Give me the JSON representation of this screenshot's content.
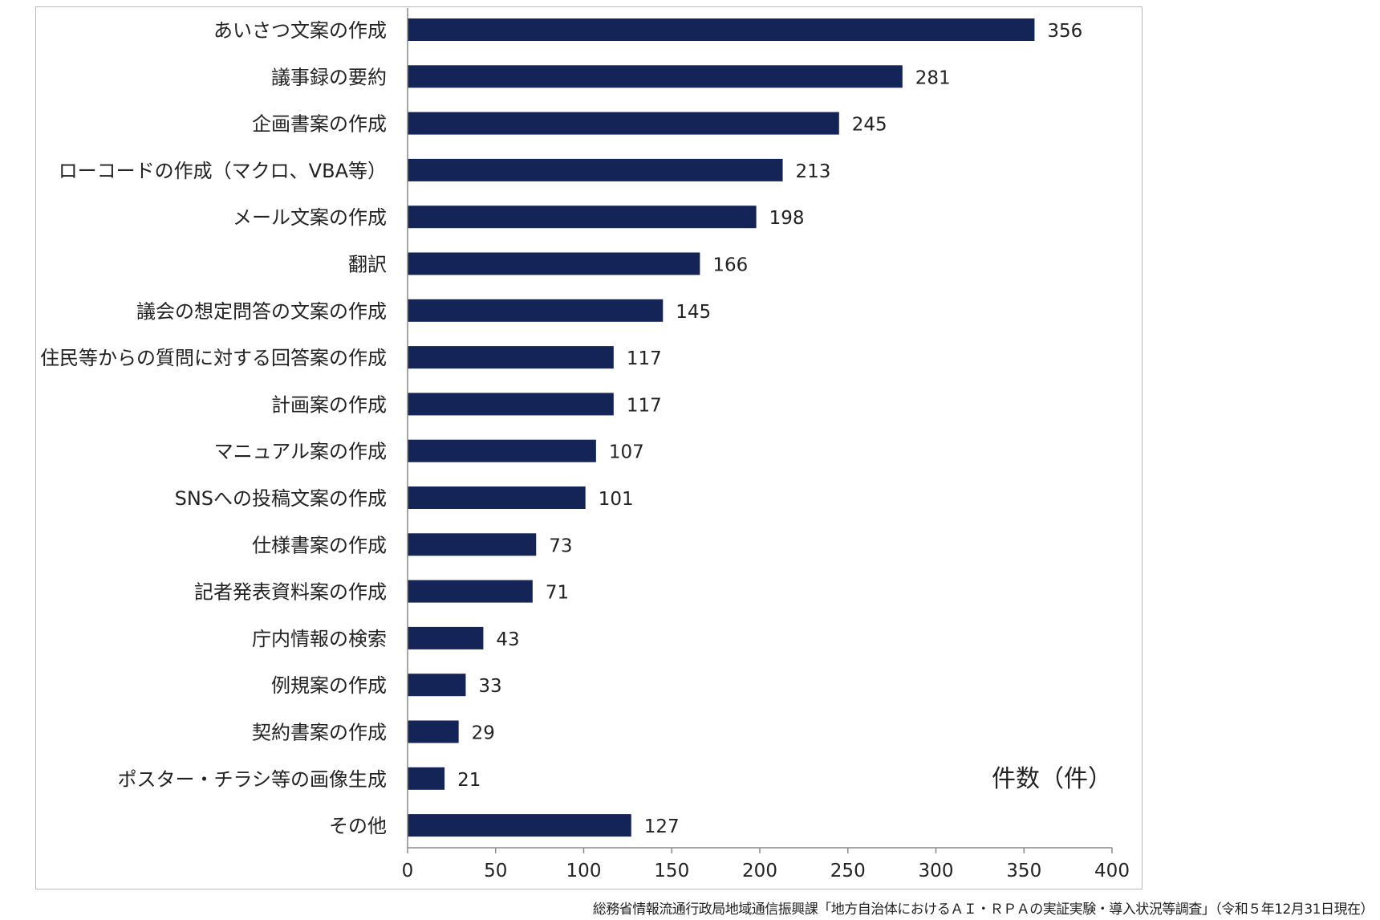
{
  "chart_data": {
    "type": "bar",
    "orientation": "horizontal",
    "categories": [
      "あいさつ文案の作成",
      "議事録の要約",
      "企画書案の作成",
      "ローコードの作成（マクロ、VBA等）",
      "メール文案の作成",
      "翻訳",
      "議会の想定問答の文案の作成",
      "住民等からの質問に対する回答案の作成",
      "計画案の作成",
      "マニュアル案の作成",
      "SNSへの投稿文案の作成",
      "仕様書案の作成",
      "記者発表資料案の作成",
      "庁内情報の検索",
      "例規案の作成",
      "契約書案の作成",
      "ポスター・チラシ等の画像生成",
      "その他"
    ],
    "values": [
      356,
      281,
      245,
      213,
      198,
      166,
      145,
      117,
      117,
      107,
      101,
      73,
      71,
      43,
      33,
      29,
      21,
      127
    ],
    "xlabel": "件数（件）",
    "xlim": [
      0,
      400
    ],
    "xticks": [
      0,
      50,
      100,
      150,
      200,
      250,
      300,
      350,
      400
    ],
    "bar_color": "#152456",
    "grid": false,
    "data_labels": true
  },
  "source": "総務省情報流通行政局地域通信振興課「地方自治体におけるＡＩ・ＲＰＡの実証実験・導入状況等調査」（令和５年12月31日現在）"
}
